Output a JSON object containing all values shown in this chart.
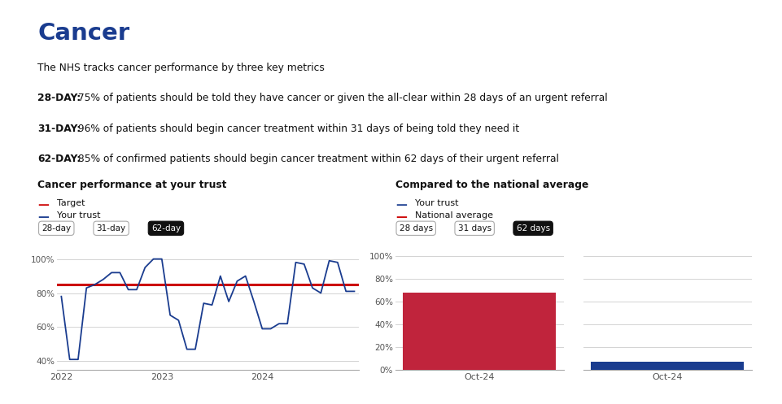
{
  "title": "Cancer",
  "title_color": "#1a3c8f",
  "intro_text": "The NHS tracks cancer performance by three key metrics",
  "metrics": [
    {
      "bold": "28-DAY:",
      "rest": " 75% of patients should be told they have cancer or given the all-clear within 28 days of an urgent referral"
    },
    {
      "bold": "31-DAY:",
      "rest": " 96% of patients should begin cancer treatment within 31 days of being told they need it"
    },
    {
      "bold": "62-DAY:",
      "rest": " 85% of confirmed patients should begin cancer treatment within 62 days of their urgent referral"
    }
  ],
  "left_chart_title": "Cancer performance at your trust",
  "right_chart_title": "Compared to the national average",
  "target_label": "Target",
  "your_trust_label": "Your trust",
  "national_average_label": "National average",
  "tab_buttons_left": [
    "28-day",
    "31-day",
    "62-day"
  ],
  "tab_buttons_right": [
    "28 days",
    "31 days",
    "62 days"
  ],
  "active_tab_left": "62-day",
  "active_tab_right": "62 days",
  "target_line": 85,
  "line_color": "#1a3c8f",
  "target_color": "#cc0000",
  "national_avg_color": "#cc0000",
  "bar_your_trust_color": "#c0243c",
  "bar_national_color": "#1a3c8f",
  "line_data_x": [
    0,
    1,
    2,
    3,
    4,
    5,
    6,
    7,
    8,
    9,
    10,
    11,
    12,
    13,
    14,
    15,
    16,
    17,
    18,
    19,
    20,
    21,
    22,
    23,
    24,
    25,
    26,
    27,
    28,
    29,
    30,
    31,
    32,
    33,
    34,
    35
  ],
  "line_data_y": [
    78,
    41,
    41,
    83,
    85,
    88,
    92,
    92,
    82,
    82,
    95,
    100,
    100,
    67,
    64,
    47,
    47,
    74,
    73,
    90,
    75,
    87,
    90,
    75,
    59,
    59,
    62,
    62,
    98,
    97,
    83,
    80,
    99,
    98,
    81,
    81
  ],
  "x_tick_labels": [
    "2022",
    "2023",
    "2024"
  ],
  "x_tick_positions": [
    0,
    12,
    24
  ],
  "ylim_left": [
    35,
    105
  ],
  "yticks_left": [
    40,
    60,
    80,
    100
  ],
  "ytick_labels_left": [
    "40%",
    "60%",
    "80%",
    "100%"
  ],
  "bar_your_trust_value": 68.2,
  "bar_national_value": 7.1,
  "ylim_right": [
    0,
    105
  ],
  "yticks_right": [
    0,
    20,
    40,
    60,
    80,
    100
  ],
  "ytick_labels_right": [
    "0%",
    "20%",
    "40%",
    "60%",
    "80%",
    "100%"
  ],
  "background_color": "#ffffff",
  "grid_color": "#cccccc"
}
